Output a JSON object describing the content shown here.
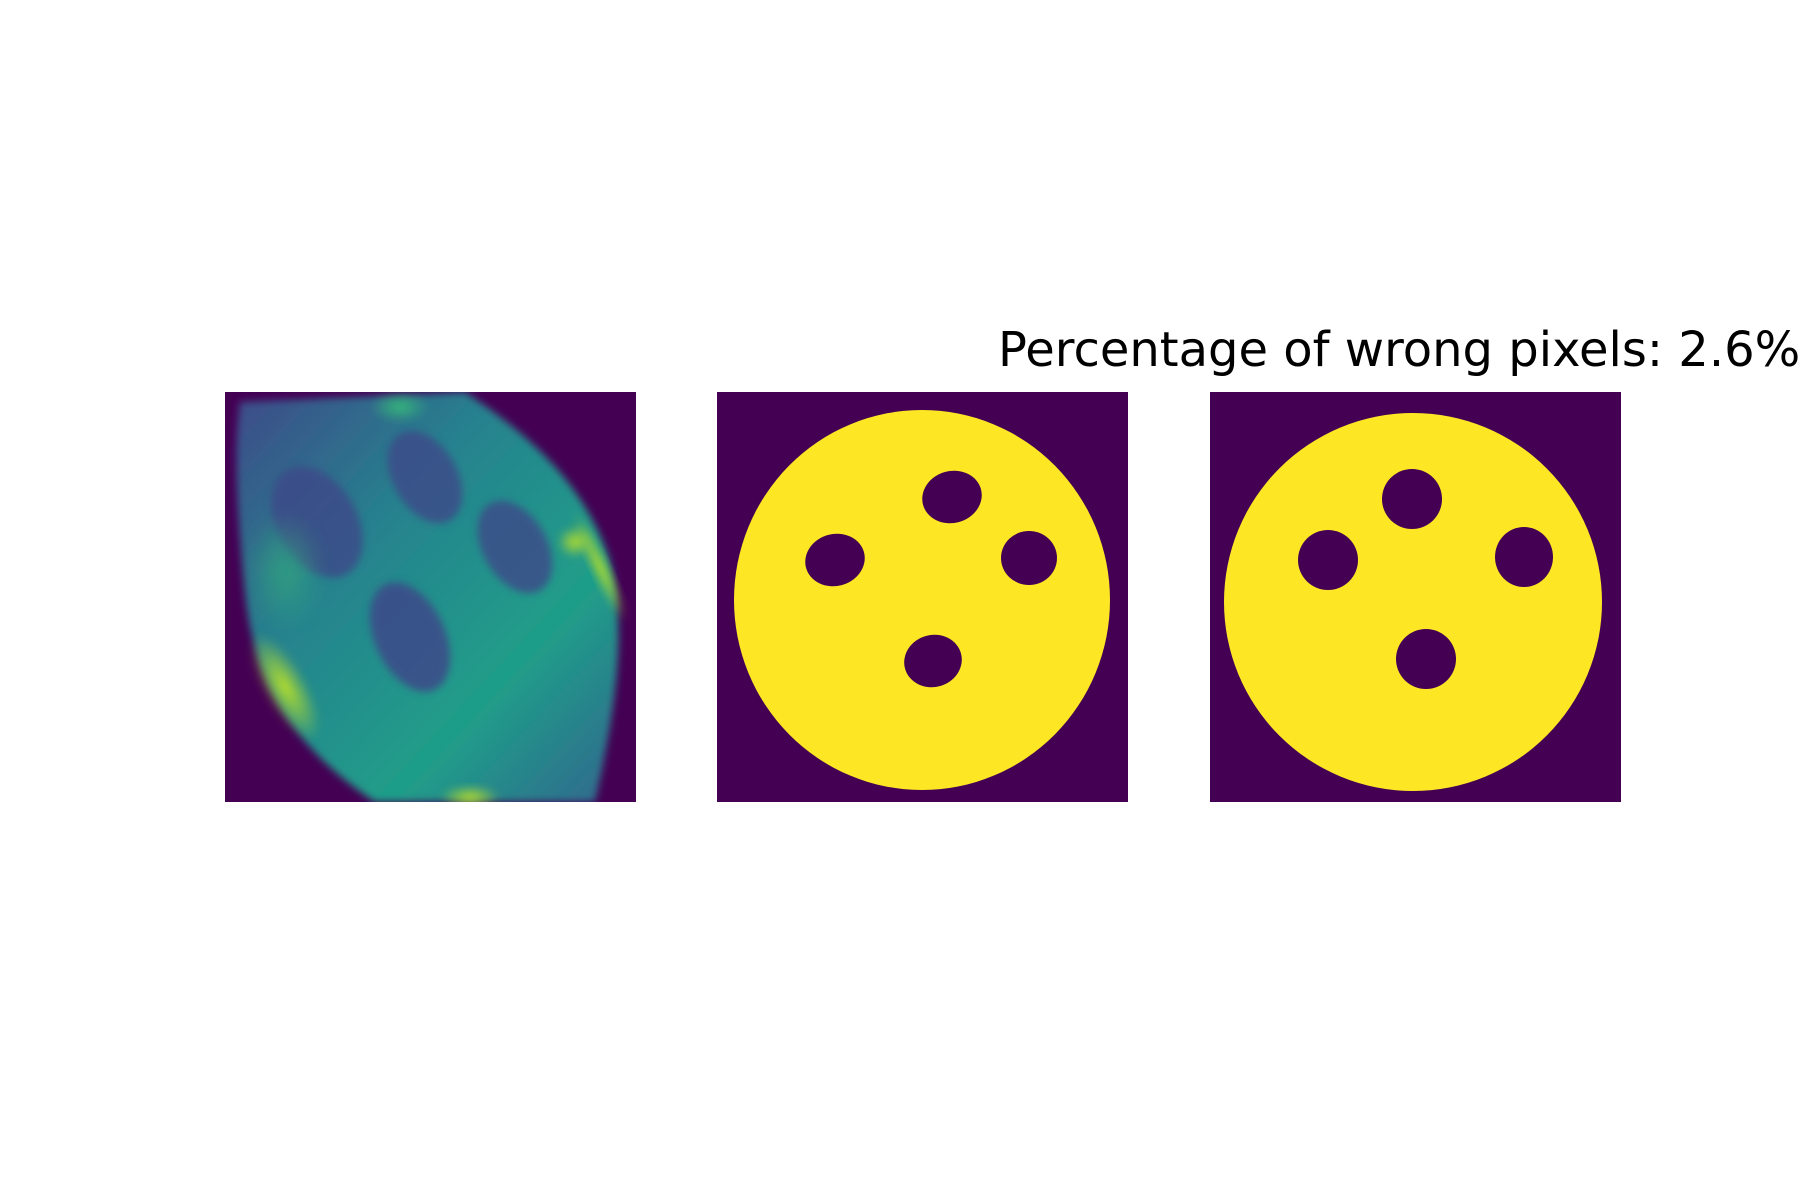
{
  "title": "Percentage of wrong pixels: 2.6%",
  "colors": {
    "background": "#ffffff",
    "colormap_low": "#440154",
    "colormap_mid": "#21918c",
    "colormap_high": "#fde725"
  }
}
